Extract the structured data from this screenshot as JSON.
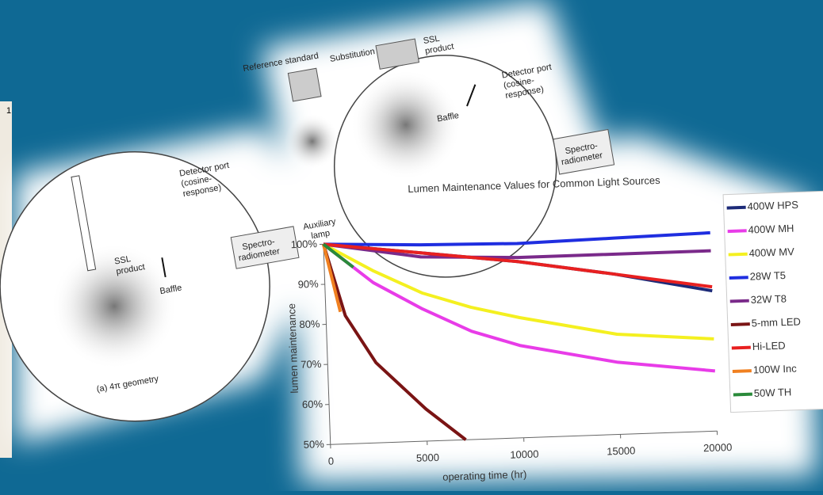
{
  "side_panel": {
    "label": "1"
  },
  "diagrams": [
    {
      "labels": [
        "Detector port",
        "(cosine-",
        "response)",
        "SSL",
        "product",
        "Baffle",
        "Spectro-",
        "radiometer",
        "(a) 4π geometry"
      ]
    },
    {
      "labels": [
        "Reference standard",
        "Substitution",
        "SSL",
        "product",
        "Detector port",
        "(cosine-",
        "response)",
        "Baffle",
        "Auxiliary",
        "lamp",
        "Spectro-",
        "radiometer"
      ]
    }
  ],
  "chart_data": {
    "type": "line",
    "title": "Lumen Maintenance Values for Common Light Sources",
    "x_label": "operating time (hr)",
    "y_label": "lumen maintenance",
    "xlim": [
      0,
      20000
    ],
    "xticks": [
      0,
      5000,
      10000,
      15000,
      20000
    ],
    "ylim": [
      50,
      100
    ],
    "yticks": [
      {
        "value": 50,
        "label": "50%"
      },
      {
        "value": 60,
        "label": "60%"
      },
      {
        "value": 70,
        "label": "70%"
      },
      {
        "value": 80,
        "label": "80%"
      },
      {
        "value": 90,
        "label": "90%"
      },
      {
        "value": 100,
        "label": "100%"
      }
    ],
    "legend": "right",
    "series": [
      {
        "name": "400W HPS",
        "color": "#1c2a78",
        "x": [
          0,
          5000,
          10000,
          15000,
          20000
        ],
        "values": [
          100,
          97,
          94,
          90,
          85
        ]
      },
      {
        "name": "400W MH",
        "color": "#e83ce8",
        "x": [
          0,
          2500,
          5000,
          7500,
          10000,
          15000,
          20000
        ],
        "values": [
          100,
          90,
          83,
          77,
          73,
          68,
          65
        ]
      },
      {
        "name": "400W MV",
        "color": "#f4f020",
        "x": [
          0,
          2500,
          5000,
          7500,
          10000,
          15000,
          20000
        ],
        "values": [
          100,
          93,
          87,
          83,
          80,
          75,
          73
        ]
      },
      {
        "name": "28W T5",
        "color": "#1f2ee0",
        "x": [
          0,
          5000,
          10000,
          15000,
          20000
        ],
        "values": [
          100,
          99,
          98.5,
          99,
          99.5
        ]
      },
      {
        "name": "32W T8",
        "color": "#7a2a8a",
        "x": [
          0,
          5000,
          10000,
          20000
        ],
        "values": [
          100,
          96,
          95,
          95
        ]
      },
      {
        "name": "5-mm LED",
        "color": "#7a1414",
        "x": [
          0,
          1000,
          2500,
          5000,
          7000
        ],
        "values": [
          100,
          82,
          70,
          58,
          50
        ]
      },
      {
        "name": "Hi-LED",
        "color": "#e82020",
        "x": [
          0,
          5000,
          10000,
          15000,
          20000
        ],
        "values": [
          100,
          97,
          94,
          90,
          86
        ]
      },
      {
        "name": "100W Inc",
        "color": "#f08020",
        "x": [
          0,
          750
        ],
        "values": [
          100,
          83
        ]
      },
      {
        "name": "50W TH",
        "color": "#2a8a3a",
        "x": [
          0,
          1500
        ],
        "values": [
          100,
          94
        ]
      }
    ]
  }
}
